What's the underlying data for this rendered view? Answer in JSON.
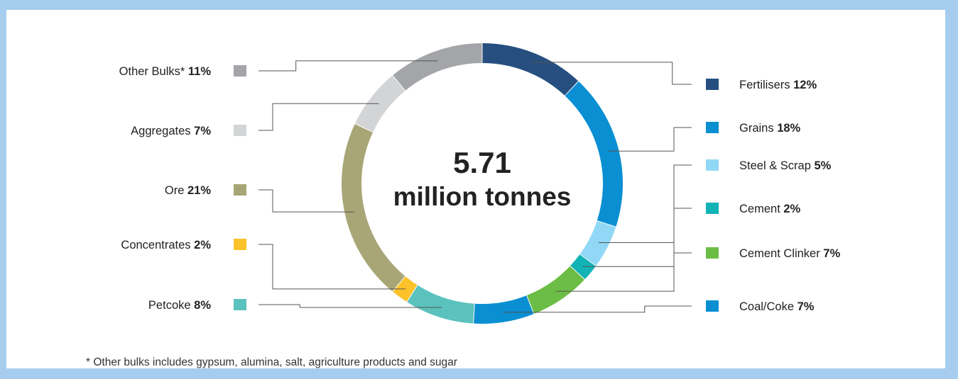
{
  "chart_data": {
    "type": "donut",
    "center_value": "5.71",
    "center_unit": "million tonnes",
    "segments": [
      {
        "label": "Fertilisers",
        "value": 12,
        "pct_label": "12%",
        "color": "#264f80"
      },
      {
        "label": "Grains",
        "value": 18,
        "pct_label": "18%",
        "color": "#0a8fd2"
      },
      {
        "label": "Steel & Scrap",
        "value": 5,
        "pct_label": "5%",
        "color": "#91d7f6"
      },
      {
        "label": "Cement",
        "value": 2,
        "pct_label": "2%",
        "color": "#12b3b5"
      },
      {
        "label": "Cement Clinker",
        "value": 7,
        "pct_label": "7%",
        "color": "#6cbd45"
      },
      {
        "label": "Coal/Coke",
        "value": 7,
        "pct_label": "7%",
        "color": "#0a8fd2"
      },
      {
        "label": "Petcoke",
        "value": 8,
        "pct_label": "8%",
        "color": "#5bc2bd"
      },
      {
        "label": "Concentrates",
        "value": 2,
        "pct_label": "2%",
        "color": "#fbc22a"
      },
      {
        "label": "Ore",
        "value": 21,
        "pct_label": "21%",
        "color": "#a8a676"
      },
      {
        "label": "Aggregates",
        "value": 7,
        "pct_label": "7%",
        "color": "#d3d4d6"
      },
      {
        "label": "Other Bulks*",
        "value": 11,
        "pct_label": "11%",
        "color": "#a3a5a8"
      }
    ],
    "footnote": "*  Other bulks includes gypsum, alumina, salt, agriculture products and sugar"
  }
}
